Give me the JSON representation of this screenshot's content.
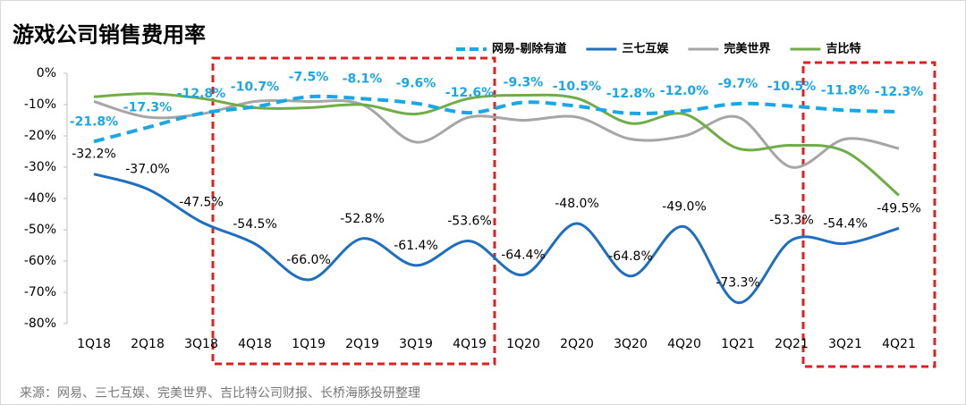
{
  "chart_data": {
    "type": "line",
    "title": "游戏公司销售费用率",
    "source": "来源：网易、三七互娱、完美世界、吉比特公司财报、长桥海豚投研整理",
    "categories": [
      "1Q18",
      "2Q18",
      "3Q18",
      "4Q18",
      "1Q19",
      "2Q19",
      "3Q19",
      "4Q19",
      "1Q20",
      "2Q20",
      "3Q20",
      "4Q20",
      "1Q21",
      "2Q21",
      "3Q21",
      "4Q21"
    ],
    "ylim": [
      -80,
      0
    ],
    "yticks": [
      {
        "value": 0,
        "label": "0%"
      },
      {
        "value": -10,
        "label": "-10%"
      },
      {
        "value": -20,
        "label": "-20%"
      },
      {
        "value": -30,
        "label": "-30%"
      },
      {
        "value": -40,
        "label": "-40%"
      },
      {
        "value": -50,
        "label": "-50%"
      },
      {
        "value": -60,
        "label": "-60%"
      },
      {
        "value": -70,
        "label": "-70%"
      },
      {
        "value": -80,
        "label": "-80%"
      }
    ],
    "series": [
      {
        "name": "网易-剔除有道",
        "color": "#1aa7e8",
        "dashed": true,
        "values": [
          -21.8,
          -17.3,
          -12.8,
          -10.7,
          -7.5,
          -8.1,
          -9.6,
          -12.6,
          -9.3,
          -10.5,
          -12.8,
          -12.0,
          -9.7,
          -10.5,
          -11.8,
          -12.3
        ],
        "value_labels": [
          "-21.8%",
          "-17.3%",
          "-12.8%",
          "-10.7%",
          "-7.5%",
          "-8.1%",
          "-9.6%",
          "-12.6%",
          "-9.3%",
          "-10.5%",
          "-12.8%",
          "-12.0%",
          "-9.7%",
          "-10.5%",
          "-11.8%",
          "-12.3%"
        ]
      },
      {
        "name": "三七互娱",
        "color": "#1f6fc0",
        "dashed": false,
        "values": [
          -32.2,
          -37.0,
          -47.5,
          -54.5,
          -66.0,
          -52.8,
          -61.4,
          -53.6,
          -64.4,
          -48.0,
          -64.8,
          -49.0,
          -73.3,
          -53.3,
          -54.4,
          -49.5
        ],
        "value_labels": [
          "-32.2%",
          "-37.0%",
          "-47.5%",
          "-54.5%",
          "-66.0%",
          "-52.8%",
          "-61.4%",
          "-53.6%",
          "-64.4%",
          "-48.0%",
          "-64.8%",
          "-49.0%",
          "-73.3%",
          "-53.3%",
          "-54.4%",
          "-49.5%"
        ]
      },
      {
        "name": "完美世界",
        "color": "#a6a6a6",
        "dashed": false,
        "values": [
          -9,
          -14,
          -13,
          -9,
          -9,
          -10,
          -22,
          -14,
          -15,
          -14,
          -21,
          -20,
          -14,
          -30,
          -21,
          -24
        ]
      },
      {
        "name": "吉比特",
        "color": "#70ad47",
        "dashed": false,
        "values": [
          -7.5,
          -6.5,
          -8,
          -11,
          -11,
          -10,
          -13,
          -8,
          -7,
          -8,
          -16,
          -13,
          -24,
          -23,
          -25,
          -39
        ]
      }
    ]
  }
}
